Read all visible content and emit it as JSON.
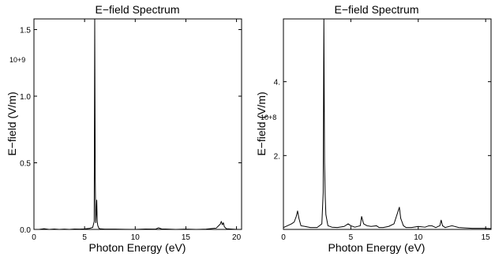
{
  "chart_data": [
    {
      "type": "line",
      "title": "E−field Spectrum",
      "xlabel": "Photon Energy (eV)",
      "ylabel": "E−field (V/m)",
      "y_multiplier_label": "10+9",
      "xlim": [
        0,
        20.5
      ],
      "ylim": [
        0,
        1.58
      ],
      "xticks": [
        0,
        5,
        10,
        15,
        20
      ],
      "yticks": [
        0.0,
        0.5,
        1.0,
        1.5
      ],
      "ytick_labels": [
        "0.0",
        "0.5",
        "1.0",
        "1.5"
      ],
      "grid": false,
      "series": [
        {
          "x": [
            0,
            0.5,
            1.0,
            1.5,
            2.0,
            2.5,
            3.0,
            3.5,
            4.0,
            4.5,
            5.0,
            5.5,
            5.8,
            5.95,
            6.0,
            6.05,
            6.1,
            6.15,
            6.2,
            6.25,
            6.3,
            6.4,
            6.5,
            7.0,
            8.0,
            9.0,
            10.0,
            11.0,
            12.0,
            12.3,
            12.6,
            13.0,
            14.0,
            15.0,
            16.0,
            17.0,
            18.0,
            18.2,
            18.4,
            18.5,
            18.6,
            18.7,
            18.8,
            19.0,
            20.0,
            20.5
          ],
          "values": [
            0.0,
            0.0,
            0.005,
            0.0,
            0.003,
            0.0,
            0.002,
            0.0,
            0.003,
            0.002,
            0.004,
            0.008,
            0.015,
            0.06,
            1.58,
            0.4,
            0.05,
            0.12,
            0.22,
            0.06,
            0.03,
            0.01,
            0.005,
            0.002,
            0.002,
            0.001,
            0.0,
            0.003,
            0.002,
            0.012,
            0.004,
            0.003,
            0.0,
            0.002,
            0.0,
            0.002,
            0.01,
            0.025,
            0.04,
            0.06,
            0.035,
            0.05,
            0.02,
            0.005,
            0.0,
            0.0
          ]
        }
      ]
    },
    {
      "type": "line",
      "title": "E−field Spectrum",
      "xlabel": "Photon Energy (eV)",
      "ylabel": "E−field (V/m)",
      "y_multiplier_label": "10+8",
      "xlim": [
        0,
        15.4
      ],
      "ylim": [
        0,
        5.7
      ],
      "xticks": [
        0,
        5,
        10,
        15
      ],
      "yticks": [
        2.0,
        4.0
      ],
      "ytick_labels": [
        "2.",
        "4."
      ],
      "grid": false,
      "series": [
        {
          "x": [
            0,
            0.3,
            0.6,
            0.8,
            0.95,
            1.05,
            1.15,
            1.3,
            1.6,
            2.0,
            2.5,
            2.85,
            2.95,
            3.0,
            3.05,
            3.1,
            3.15,
            3.3,
            3.6,
            4.0,
            4.5,
            4.8,
            5.0,
            5.3,
            5.7,
            5.8,
            5.95,
            6.2,
            6.5,
            6.9,
            7.1,
            7.4,
            7.8,
            8.2,
            8.6,
            8.7,
            8.8,
            8.9,
            9.1,
            9.5,
            10.0,
            10.5,
            10.8,
            11.0,
            11.3,
            11.6,
            11.7,
            11.8,
            12.0,
            12.5,
            13.0,
            14.0,
            15.0,
            15.4
          ],
          "values": [
            0.05,
            0.1,
            0.15,
            0.2,
            0.35,
            0.5,
            0.3,
            0.1,
            0.08,
            0.05,
            0.05,
            0.15,
            1.0,
            5.7,
            1.8,
            0.9,
            0.4,
            0.1,
            0.06,
            0.05,
            0.08,
            0.15,
            0.1,
            0.06,
            0.1,
            0.35,
            0.15,
            0.1,
            0.08,
            0.1,
            0.05,
            0.05,
            0.08,
            0.15,
            0.6,
            0.3,
            0.2,
            0.1,
            0.05,
            0.05,
            0.08,
            0.06,
            0.1,
            0.1,
            0.05,
            0.1,
            0.25,
            0.1,
            0.05,
            0.1,
            0.05,
            0.03,
            0.03,
            0.02
          ]
        }
      ]
    }
  ]
}
